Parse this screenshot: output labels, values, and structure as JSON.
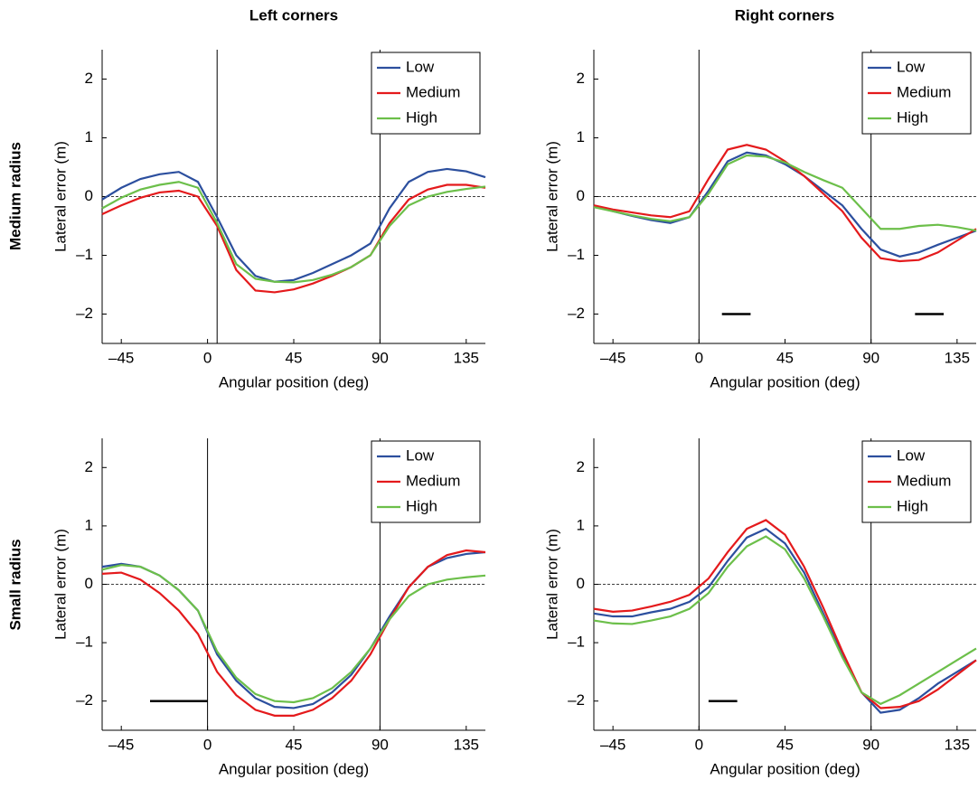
{
  "column_titles": [
    "Left corners",
    "Right corners"
  ],
  "row_titles": [
    "Medium radius",
    "Small radius"
  ],
  "chart_data": [
    {
      "type": "line",
      "xlabel": "Angular position (deg)",
      "ylabel": "Lateral error (m)",
      "x": [
        -55,
        -45,
        -35,
        -25,
        -15,
        -5,
        5,
        15,
        25,
        35,
        45,
        55,
        65,
        75,
        85,
        95,
        105,
        115,
        125,
        135,
        145
      ],
      "series": [
        {
          "name": "Low",
          "color": "#2c4f9e",
          "values": [
            -0.05,
            0.15,
            0.3,
            0.38,
            0.42,
            0.25,
            -0.35,
            -1.0,
            -1.35,
            -1.45,
            -1.42,
            -1.3,
            -1.15,
            -1.0,
            -0.8,
            -0.2,
            0.25,
            0.42,
            0.47,
            0.43,
            0.33
          ]
        },
        {
          "name": "Medium",
          "color": "#e41a1c",
          "values": [
            -0.3,
            -0.15,
            -0.02,
            0.07,
            0.1,
            0.0,
            -0.5,
            -1.25,
            -1.6,
            -1.63,
            -1.58,
            -1.48,
            -1.35,
            -1.2,
            -1.0,
            -0.45,
            -0.05,
            0.12,
            0.2,
            0.2,
            0.15
          ]
        },
        {
          "name": "High",
          "color": "#6cbf4a",
          "values": [
            -0.2,
            -0.02,
            0.12,
            0.2,
            0.25,
            0.15,
            -0.45,
            -1.15,
            -1.4,
            -1.45,
            -1.46,
            -1.42,
            -1.33,
            -1.2,
            -1.0,
            -0.5,
            -0.15,
            0.0,
            0.08,
            0.13,
            0.17
          ]
        }
      ],
      "xlim": [
        -55,
        145
      ],
      "ylim": [
        -2.5,
        2.5
      ],
      "xticks": [
        {
          "value": -45,
          "label": "–45"
        },
        0,
        45,
        90,
        135
      ],
      "yticks": [
        {
          "value": -2,
          "label": "–2"
        },
        {
          "value": -1,
          "label": "–1"
        },
        0,
        1,
        2
      ],
      "vlines": [
        5,
        90
      ],
      "hline": 0,
      "segments": [],
      "legend": "upper right"
    },
    {
      "type": "line",
      "xlabel": "Angular position (deg)",
      "ylabel": "Lateral error (m)",
      "x": [
        -55,
        -45,
        -35,
        -25,
        -15,
        -5,
        5,
        15,
        25,
        35,
        45,
        55,
        65,
        75,
        85,
        95,
        105,
        115,
        125,
        135,
        145
      ],
      "series": [
        {
          "name": "Low",
          "color": "#2c4f9e",
          "values": [
            -0.15,
            -0.25,
            -0.33,
            -0.4,
            -0.45,
            -0.35,
            0.1,
            0.6,
            0.75,
            0.7,
            0.55,
            0.35,
            0.1,
            -0.15,
            -0.55,
            -0.9,
            -1.02,
            -0.95,
            -0.82,
            -0.7,
            -0.58
          ]
        },
        {
          "name": "Medium",
          "color": "#e41a1c",
          "values": [
            -0.15,
            -0.22,
            -0.27,
            -0.32,
            -0.35,
            -0.25,
            0.3,
            0.8,
            0.88,
            0.8,
            0.6,
            0.35,
            0.05,
            -0.25,
            -0.7,
            -1.05,
            -1.1,
            -1.08,
            -0.95,
            -0.75,
            -0.55
          ]
        },
        {
          "name": "High",
          "color": "#6cbf4a",
          "values": [
            -0.18,
            -0.25,
            -0.32,
            -0.38,
            -0.42,
            -0.35,
            0.05,
            0.55,
            0.7,
            0.68,
            0.58,
            0.42,
            0.28,
            0.15,
            -0.2,
            -0.55,
            -0.55,
            -0.5,
            -0.48,
            -0.52,
            -0.58
          ]
        }
      ],
      "xlim": [
        -55,
        145
      ],
      "ylim": [
        -2.5,
        2.5
      ],
      "xticks": [
        {
          "value": -45,
          "label": "–45"
        },
        0,
        45,
        90,
        135
      ],
      "yticks": [
        {
          "value": -2,
          "label": "–2"
        },
        {
          "value": -1,
          "label": "–1"
        },
        0,
        1,
        2
      ],
      "vlines": [
        0,
        90
      ],
      "hline": 0,
      "segments": [
        {
          "x": [
            12,
            27
          ],
          "y": -2
        },
        {
          "x": [
            113,
            128
          ],
          "y": -2
        }
      ],
      "legend": "upper right"
    },
    {
      "type": "line",
      "xlabel": "Angular position (deg)",
      "ylabel": "Lateral error (m)",
      "x": [
        -55,
        -45,
        -35,
        -25,
        -15,
        -5,
        5,
        15,
        25,
        35,
        45,
        55,
        65,
        75,
        85,
        95,
        105,
        115,
        125,
        135,
        145
      ],
      "series": [
        {
          "name": "Low",
          "color": "#2c4f9e",
          "values": [
            0.3,
            0.35,
            0.3,
            0.15,
            -0.1,
            -0.45,
            -1.2,
            -1.65,
            -1.95,
            -2.1,
            -2.12,
            -2.05,
            -1.85,
            -1.55,
            -1.1,
            -0.55,
            -0.05,
            0.3,
            0.45,
            0.52,
            0.55
          ]
        },
        {
          "name": "Medium",
          "color": "#e41a1c",
          "values": [
            0.18,
            0.2,
            0.08,
            -0.15,
            -0.45,
            -0.85,
            -1.5,
            -1.9,
            -2.15,
            -2.25,
            -2.25,
            -2.15,
            -1.95,
            -1.65,
            -1.2,
            -0.6,
            -0.05,
            0.3,
            0.5,
            0.58,
            0.55
          ]
        },
        {
          "name": "High",
          "color": "#6cbf4a",
          "values": [
            0.25,
            0.33,
            0.3,
            0.15,
            -0.1,
            -0.45,
            -1.15,
            -1.6,
            -1.88,
            -2.0,
            -2.02,
            -1.95,
            -1.78,
            -1.5,
            -1.1,
            -0.6,
            -0.2,
            0.0,
            0.08,
            0.12,
            0.15
          ]
        }
      ],
      "xlim": [
        -55,
        145
      ],
      "ylim": [
        -2.5,
        2.5
      ],
      "xticks": [
        {
          "value": -45,
          "label": "–45"
        },
        0,
        45,
        90,
        135
      ],
      "yticks": [
        {
          "value": -2,
          "label": "–2"
        },
        {
          "value": -1,
          "label": "–1"
        },
        0,
        1,
        2
      ],
      "vlines": [
        0,
        90
      ],
      "hline": 0,
      "segments": [
        {
          "x": [
            -30,
            0
          ],
          "y": -2
        }
      ],
      "legend": "upper right"
    },
    {
      "type": "line",
      "xlabel": "Angular position (deg)",
      "ylabel": "Lateral error (m)",
      "x": [
        -55,
        -45,
        -35,
        -25,
        -15,
        -5,
        5,
        15,
        25,
        35,
        45,
        55,
        65,
        75,
        85,
        95,
        105,
        115,
        125,
        135,
        145
      ],
      "series": [
        {
          "name": "Low",
          "color": "#2c4f9e",
          "values": [
            -0.5,
            -0.55,
            -0.55,
            -0.48,
            -0.42,
            -0.3,
            -0.05,
            0.4,
            0.8,
            0.95,
            0.7,
            0.2,
            -0.5,
            -1.2,
            -1.85,
            -2.2,
            -2.15,
            -1.95,
            -1.7,
            -1.5,
            -1.3
          ]
        },
        {
          "name": "Medium",
          "color": "#e41a1c",
          "values": [
            -0.42,
            -0.47,
            -0.45,
            -0.38,
            -0.3,
            -0.18,
            0.1,
            0.55,
            0.95,
            1.1,
            0.85,
            0.3,
            -0.4,
            -1.15,
            -1.85,
            -2.12,
            -2.1,
            -2.0,
            -1.8,
            -1.55,
            -1.3
          ]
        },
        {
          "name": "High",
          "color": "#6cbf4a",
          "values": [
            -0.62,
            -0.67,
            -0.68,
            -0.62,
            -0.55,
            -0.42,
            -0.15,
            0.3,
            0.65,
            0.82,
            0.6,
            0.1,
            -0.55,
            -1.25,
            -1.85,
            -2.05,
            -1.9,
            -1.7,
            -1.5,
            -1.3,
            -1.1
          ]
        }
      ],
      "xlim": [
        -55,
        145
      ],
      "ylim": [
        -2.5,
        2.5
      ],
      "xticks": [
        {
          "value": -45,
          "label": "–45"
        },
        0,
        45,
        90,
        135
      ],
      "yticks": [
        {
          "value": -2,
          "label": "–2"
        },
        {
          "value": -1,
          "label": "–1"
        },
        0,
        1,
        2
      ],
      "vlines": [
        0,
        90
      ],
      "hline": 0,
      "segments": [
        {
          "x": [
            5,
            20
          ],
          "y": -2
        }
      ],
      "legend": "upper right"
    }
  ]
}
